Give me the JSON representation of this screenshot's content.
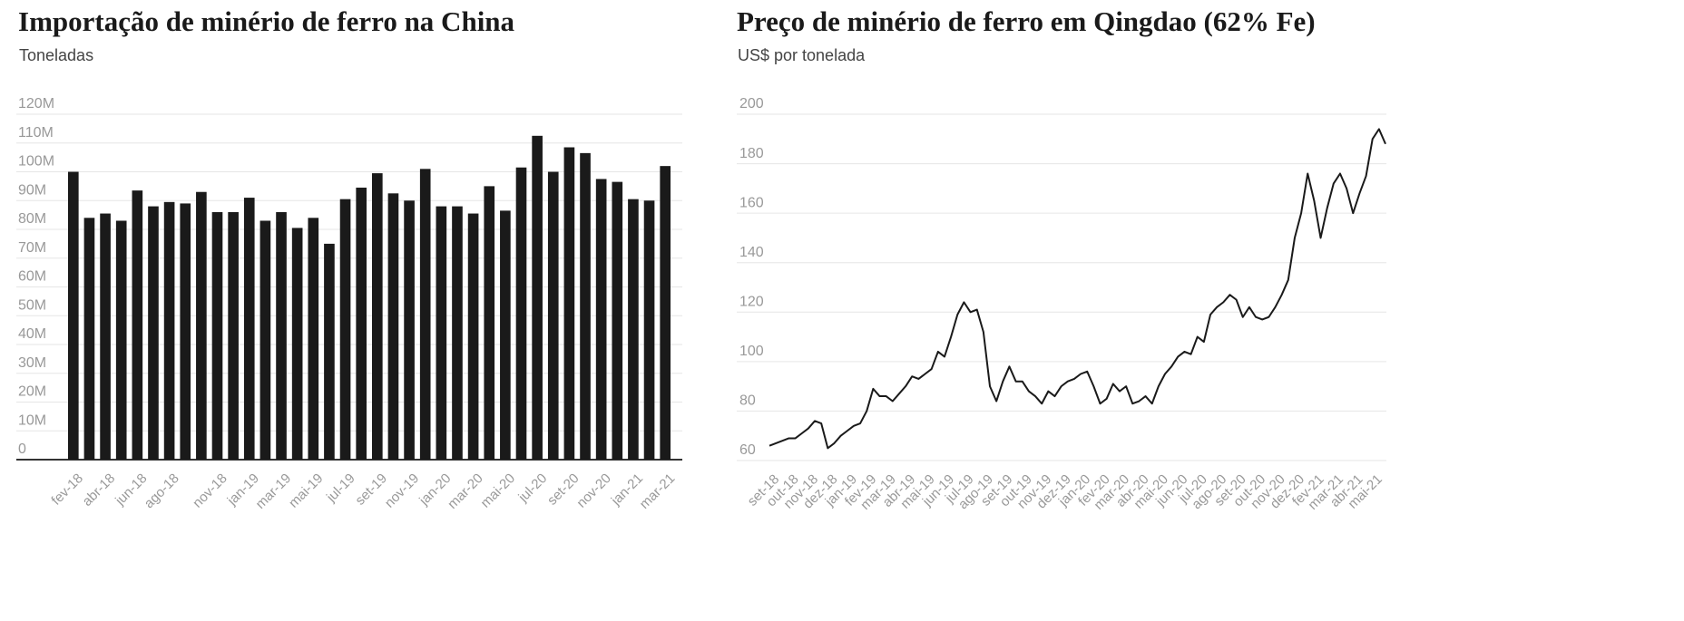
{
  "chart_data": [
    {
      "type": "bar",
      "title": "Importação de minério de ferro na China",
      "subtitle": "Toneladas",
      "categories": [
        "fev-18",
        null,
        "abr-18",
        null,
        "jun-18",
        null,
        "ago-18",
        null,
        null,
        "nov-18",
        null,
        "jan-19",
        null,
        "mar-19",
        null,
        "mai-19",
        null,
        "jul-19",
        null,
        "set-19",
        null,
        "nov-19",
        null,
        "jan-20",
        null,
        "mar-20",
        null,
        "mai-20",
        null,
        "jul-20",
        null,
        "set-20",
        null,
        "nov-20",
        null,
        "jan-21",
        null,
        "mar-21"
      ],
      "values": [
        100000000,
        84000000,
        85500000,
        83000000,
        93500000,
        88000000,
        89500000,
        89000000,
        93000000,
        86000000,
        86000000,
        91000000,
        83000000,
        86000000,
        80500000,
        84000000,
        75000000,
        90500000,
        94500000,
        99500000,
        92500000,
        90000000,
        101000000,
        88000000,
        88000000,
        85500000,
        95000000,
        86500000,
        101500000,
        112500000,
        100000000,
        108500000,
        106500000,
        97500000,
        96500000,
        90500000,
        90000000,
        102000000
      ],
      "color": "#1a1a1a",
      "ylim": [
        0,
        120000000
      ],
      "yticks": [
        0,
        {
          "value": 10000000,
          "label": "10M"
        },
        {
          "value": 20000000,
          "label": "20M"
        },
        {
          "value": 30000000,
          "label": "30M"
        },
        {
          "value": 40000000,
          "label": "40M"
        },
        {
          "value": 50000000,
          "label": "50M"
        },
        {
          "value": 60000000,
          "label": "60M"
        },
        {
          "value": 70000000,
          "label": "70M"
        },
        {
          "value": 80000000,
          "label": "80M"
        },
        {
          "value": 90000000,
          "label": "90M"
        },
        {
          "value": 100000000,
          "label": "100M"
        },
        {
          "value": 110000000,
          "label": "110M"
        },
        {
          "value": 120000000,
          "label": "120M"
        }
      ],
      "grid": true
    },
    {
      "type": "line",
      "title": "Preço de minério de ferro em Qingdao (62% Fe)",
      "subtitle": "US$ por tonelada",
      "categories": [
        "set-18",
        null,
        null,
        "out-18",
        null,
        null,
        "nov-18",
        null,
        null,
        "dez-18",
        null,
        null,
        "jan-19",
        null,
        null,
        "fev-19",
        null,
        null,
        "mar-19",
        null,
        null,
        "abr-19",
        null,
        null,
        "mai-19",
        null,
        null,
        "jun-19",
        null,
        null,
        "jul-19",
        null,
        null,
        "ago-19",
        null,
        null,
        "set-19",
        null,
        null,
        "out-19",
        null,
        null,
        "nov-19",
        null,
        null,
        "dez-19",
        null,
        null,
        "jan-20",
        null,
        null,
        "fev-20",
        null,
        null,
        "mar-20",
        null,
        null,
        "abr-20",
        null,
        null,
        "mai-20",
        null,
        null,
        "jun-20",
        null,
        null,
        "jul-20",
        null,
        null,
        "ago-20",
        null,
        null,
        "set-20",
        null,
        null,
        "out-20",
        null,
        null,
        "nov-20",
        null,
        null,
        "dez-20",
        null,
        null,
        "fev-21",
        null,
        null,
        "mar-21",
        null,
        null,
        "abr-21",
        null,
        null,
        "mai-21",
        null,
        null
      ],
      "values": [
        66,
        67,
        68,
        69,
        69,
        71,
        73,
        76,
        75,
        65,
        67,
        70,
        72,
        74,
        75,
        80,
        89,
        86,
        86,
        84,
        87,
        90,
        94,
        93,
        95,
        97,
        104,
        102,
        110,
        119,
        124,
        120,
        121,
        112,
        90,
        84,
        92,
        98,
        92,
        92,
        88,
        86,
        83,
        88,
        86,
        90,
        92,
        93,
        95,
        96,
        90,
        83,
        85,
        91,
        88,
        90,
        83,
        84,
        86,
        83,
        90,
        95,
        98,
        102,
        104,
        103,
        110,
        108,
        119,
        122,
        124,
        127,
        125,
        118,
        122,
        118,
        117,
        118,
        122,
        127,
        133,
        150,
        160,
        176,
        165,
        150,
        162,
        172,
        176,
        170,
        160,
        168,
        175,
        190,
        194,
        188
      ],
      "color": "#1a1a1a",
      "ylim": [
        60,
        200
      ],
      "yticks": [
        60,
        80,
        100,
        120,
        140,
        160,
        180,
        200
      ],
      "grid": true
    }
  ]
}
